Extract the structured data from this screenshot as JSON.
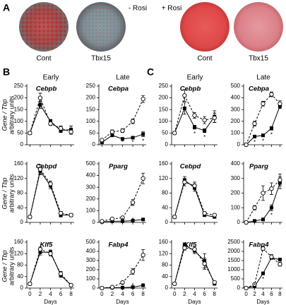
{
  "panel_a": {
    "label": "A",
    "groups": [
      {
        "title": "- Rosi",
        "dishes": [
          "Cont",
          "Tbx15"
        ]
      },
      {
        "title": "+ Rosi",
        "dishes": [
          "Cont",
          "Tbx15"
        ]
      }
    ]
  },
  "panel_labels": [
    "B",
    "C"
  ],
  "column_titles": [
    "Early",
    "Late",
    "Early",
    "Late"
  ],
  "y_label": "Gene / Tbp",
  "y_label_2": "arbitrary units",
  "chart_data": [
    {
      "type": "line",
      "title": "Cebpb",
      "x": [
        0,
        2,
        4,
        6,
        8
      ],
      "xlim": [
        -0.6,
        8.6
      ],
      "xticks": [
        0,
        2,
        4,
        6,
        8
      ],
      "ylim": [
        0,
        250
      ],
      "yticks": [
        0,
        50,
        100,
        150,
        200,
        250
      ],
      "series": [
        {
          "color": "#000000",
          "marker": "square",
          "dashed": false,
          "values": [
            50,
            170,
            100,
            60,
            65
          ],
          "errors": [
            5,
            15,
            8,
            8,
            15
          ]
        },
        {
          "color": "#000000",
          "marker": "circle",
          "dashed": true,
          "values": [
            50,
            200,
            90,
            70,
            55
          ],
          "errors": [
            5,
            20,
            8,
            10,
            10
          ]
        }
      ],
      "annotations": []
    },
    {
      "type": "line",
      "title": "Cebpa",
      "x": [
        0,
        2,
        4,
        6,
        8
      ],
      "xlim": [
        -0.6,
        8.6
      ],
      "xticks": [
        0,
        2,
        4,
        6,
        8
      ],
      "ylim": [
        0,
        250
      ],
      "yticks": [
        0,
        50,
        100,
        150,
        200,
        250
      ],
      "series": [
        {
          "color": "#000000",
          "marker": "square",
          "dashed": false,
          "values": [
            10,
            40,
            25,
            30,
            45
          ],
          "errors": [
            3,
            5,
            5,
            5,
            10
          ]
        },
        {
          "color": "#000000",
          "marker": "circle",
          "dashed": true,
          "values": [
            20,
            55,
            60,
            100,
            195
          ],
          "errors": [
            3,
            8,
            8,
            10,
            15
          ]
        }
      ],
      "annotations": [
        {
          "x": 4,
          "text": "*"
        },
        {
          "x": 6,
          "text": "*"
        },
        {
          "x": 8,
          "text": "*"
        }
      ]
    },
    {
      "type": "line",
      "title": "Cebpd",
      "x": [
        0,
        2,
        4,
        6,
        8
      ],
      "xlim": [
        -0.6,
        8.6
      ],
      "xticks": [
        0,
        2,
        4,
        6,
        8
      ],
      "ylim": [
        0,
        160
      ],
      "yticks": [
        0,
        40,
        80,
        120,
        160
      ],
      "series": [
        {
          "color": "#000000",
          "marker": "square",
          "dashed": false,
          "values": [
            15,
            140,
            100,
            20,
            20
          ],
          "errors": [
            3,
            10,
            8,
            5,
            4
          ]
        },
        {
          "color": "#000000",
          "marker": "circle",
          "dashed": true,
          "values": [
            15,
            145,
            105,
            25,
            20
          ],
          "errors": [
            3,
            12,
            8,
            5,
            4
          ]
        }
      ],
      "annotations": []
    },
    {
      "type": "line",
      "title": "Pparg",
      "x": [
        0,
        2,
        4,
        6,
        8
      ],
      "xlim": [
        -0.6,
        8.6
      ],
      "xticks": [
        0,
        2,
        4,
        6,
        8
      ],
      "ylim": [
        0,
        500
      ],
      "yticks": [
        0,
        100,
        200,
        300,
        400,
        500
      ],
      "series": [
        {
          "color": "#000000",
          "marker": "square",
          "dashed": false,
          "values": [
            5,
            10,
            10,
            15,
            25
          ],
          "errors": [
            2,
            3,
            3,
            5,
            8
          ]
        },
        {
          "color": "#000000",
          "marker": "circle",
          "dashed": true,
          "values": [
            10,
            30,
            40,
            170,
            375
          ],
          "errors": [
            3,
            8,
            10,
            25,
            45
          ]
        }
      ],
      "annotations": [
        {
          "x": 4,
          "text": "*"
        },
        {
          "x": 6,
          "text": "*"
        },
        {
          "x": 8,
          "text": "*"
        }
      ]
    },
    {
      "type": "line",
      "title": "Klf5",
      "x": [
        0,
        2,
        4,
        6,
        8
      ],
      "xlim": [
        -0.6,
        8.6
      ],
      "xticks": [
        0,
        2,
        4,
        6,
        8
      ],
      "ylim": [
        0,
        160
      ],
      "yticks": [
        0,
        40,
        80,
        120,
        160
      ],
      "xlabel": "Days",
      "series": [
        {
          "color": "#000000",
          "marker": "square",
          "dashed": false,
          "values": [
            15,
            125,
            125,
            45,
            10
          ],
          "errors": [
            3,
            10,
            8,
            8,
            3
          ]
        },
        {
          "color": "#000000",
          "marker": "circle",
          "dashed": true,
          "values": [
            15,
            135,
            120,
            50,
            10
          ],
          "errors": [
            3,
            8,
            8,
            8,
            3
          ]
        }
      ],
      "annotations": []
    },
    {
      "type": "line",
      "title": "Fabp4",
      "x": [
        0,
        2,
        4,
        6,
        8
      ],
      "xlim": [
        -0.6,
        8.6
      ],
      "xticks": [
        0,
        2,
        4,
        6,
        8
      ],
      "ylim": [
        0,
        500
      ],
      "yticks": [
        0,
        100,
        200,
        300,
        400,
        500
      ],
      "xlabel": "Days",
      "series": [
        {
          "color": "#000000",
          "marker": "square",
          "dashed": false,
          "values": [
            0,
            5,
            5,
            10,
            30
          ],
          "errors": [
            2,
            2,
            2,
            4,
            8
          ]
        },
        {
          "color": "#000000",
          "marker": "circle",
          "dashed": true,
          "values": [
            0,
            10,
            60,
            180,
            360
          ],
          "errors": [
            2,
            4,
            15,
            30,
            60
          ]
        }
      ],
      "annotations": [
        {
          "x": 4,
          "text": "*"
        },
        {
          "x": 6,
          "text": "*"
        },
        {
          "x": 8,
          "text": "*"
        }
      ]
    },
    {
      "type": "line",
      "title": "Cebpb",
      "x": [
        0,
        2,
        4,
        6,
        8
      ],
      "xlim": [
        -0.6,
        8.6
      ],
      "xticks": [
        0,
        2,
        4,
        6,
        8
      ],
      "ylim": [
        0,
        250
      ],
      "yticks": [
        0,
        50,
        100,
        150,
        200,
        250
      ],
      "series": [
        {
          "color": "#000000",
          "marker": "square",
          "dashed": false,
          "values": [
            50,
            155,
            75,
            60,
            120
          ],
          "errors": [
            5,
            25,
            8,
            8,
            25
          ]
        },
        {
          "color": "#000000",
          "marker": "circle",
          "dashed": true,
          "values": [
            50,
            210,
            125,
            105,
            115
          ],
          "errors": [
            5,
            25,
            12,
            15,
            20
          ]
        }
      ],
      "annotations": [
        {
          "x": 4,
          "text": "*"
        },
        {
          "x": 6,
          "text": "*"
        }
      ]
    },
    {
      "type": "line",
      "title": "Cebpa",
      "x": [
        0,
        2,
        4,
        6,
        8
      ],
      "xlim": [
        -0.6,
        8.6
      ],
      "xticks": [
        0,
        2,
        4,
        6,
        8
      ],
      "ylim": [
        0,
        500
      ],
      "yticks": [
        0,
        100,
        200,
        300,
        400,
        500
      ],
      "series": [
        {
          "color": "#000000",
          "marker": "square",
          "dashed": false,
          "values": [
            0,
            70,
            80,
            140,
            330
          ],
          "errors": [
            3,
            10,
            10,
            15,
            20
          ]
        },
        {
          "color": "#000000",
          "marker": "circle",
          "dashed": true,
          "values": [
            0,
            180,
            350,
            430,
            350
          ],
          "errors": [
            3,
            20,
            20,
            20,
            25
          ]
        }
      ],
      "annotations": [
        {
          "x": 2,
          "text": "*"
        },
        {
          "x": 4,
          "text": "*"
        },
        {
          "x": 6,
          "text": "*"
        }
      ]
    },
    {
      "type": "line",
      "title": "Cebpd",
      "x": [
        0,
        2,
        4,
        6,
        8
      ],
      "xlim": [
        -0.6,
        8.6
      ],
      "xticks": [
        0,
        2,
        4,
        6,
        8
      ],
      "ylim": [
        0,
        160
      ],
      "yticks": [
        0,
        40,
        80,
        120,
        160
      ],
      "series": [
        {
          "color": "#000000",
          "marker": "square",
          "dashed": false,
          "values": [
            15,
            115,
            95,
            20,
            15
          ],
          "errors": [
            3,
            10,
            10,
            4,
            3
          ]
        },
        {
          "color": "#000000",
          "marker": "circle",
          "dashed": true,
          "values": [
            15,
            110,
            100,
            25,
            20
          ],
          "errors": [
            3,
            10,
            10,
            4,
            3
          ]
        }
      ],
      "annotations": []
    },
    {
      "type": "line",
      "title": "Pparg",
      "x": [
        0,
        2,
        4,
        6,
        8
      ],
      "xlim": [
        -0.6,
        8.6
      ],
      "xticks": [
        0,
        2,
        4,
        6,
        8
      ],
      "ylim": [
        0,
        400
      ],
      "yticks": [
        0,
        100,
        200,
        300,
        400
      ],
      "series": [
        {
          "color": "#000000",
          "marker": "square",
          "dashed": false,
          "values": [
            0,
            10,
            20,
            100,
            270
          ],
          "errors": [
            3,
            4,
            6,
            20,
            40
          ]
        },
        {
          "color": "#000000",
          "marker": "circle",
          "dashed": true,
          "values": [
            0,
            100,
            200,
            230,
            290
          ],
          "errors": [
            3,
            15,
            50,
            40,
            40
          ]
        }
      ],
      "annotations": [
        {
          "x": 4,
          "text": "*"
        },
        {
          "x": 6,
          "text": "*"
        }
      ]
    },
    {
      "type": "line",
      "title": "Klf5",
      "x": [
        0,
        2,
        4,
        6,
        8
      ],
      "xlim": [
        -0.6,
        8.6
      ],
      "xticks": [
        0,
        2,
        4,
        6,
        8
      ],
      "ylim": [
        0,
        160
      ],
      "yticks": [
        0,
        40,
        80,
        120,
        160
      ],
      "xlabel": "Days",
      "series": [
        {
          "color": "#000000",
          "marker": "square",
          "dashed": false,
          "values": [
            15,
            150,
            130,
            95,
            15
          ],
          "errors": [
            3,
            8,
            10,
            25,
            3
          ]
        },
        {
          "color": "#000000",
          "marker": "circle",
          "dashed": true,
          "values": [
            15,
            140,
            135,
            85,
            20
          ],
          "errors": [
            3,
            8,
            10,
            20,
            3
          ]
        }
      ],
      "annotations": []
    },
    {
      "type": "line",
      "title": "Fabp4",
      "x": [
        0,
        2,
        4,
        6,
        8
      ],
      "xlim": [
        -0.6,
        8.6
      ],
      "xticks": [
        0,
        2,
        4,
        6,
        8
      ],
      "ylim": [
        0,
        2500
      ],
      "yticks": [
        0,
        500,
        1000,
        1500,
        2000,
        2500
      ],
      "xlabel": "Days",
      "series": [
        {
          "color": "#000000",
          "marker": "square",
          "dashed": false,
          "values": [
            0,
            100,
            800,
            1650,
            1550
          ],
          "errors": [
            20,
            30,
            60,
            80,
            80
          ]
        },
        {
          "color": "#000000",
          "marker": "circle",
          "dashed": true,
          "values": [
            0,
            200,
            2150,
            1700,
            1300
          ],
          "errors": [
            20,
            40,
            100,
            120,
            100
          ]
        }
      ],
      "annotations": [
        {
          "x": 2,
          "text": "*"
        },
        {
          "x": 4,
          "text": "*"
        }
      ]
    }
  ]
}
